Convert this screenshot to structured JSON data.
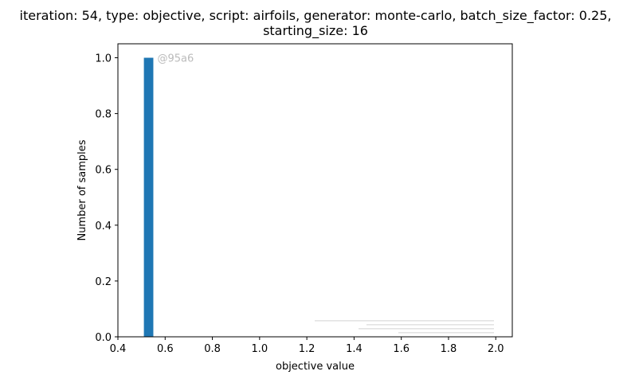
{
  "chart_data": {
    "type": "bar",
    "title_lines": [
      "iteration: 54, type: objective, script: airfoils, generator: monte-carlo, batch_size_factor: 0.25,",
      "starting_size: 16"
    ],
    "xlabel": "objective value",
    "ylabel": "Number of samples",
    "xlim": [
      0.4,
      2.07
    ],
    "ylim": [
      0,
      1.05
    ],
    "x_ticks": [
      0.4,
      0.6,
      0.8,
      1.0,
      1.2,
      1.4,
      1.6,
      1.8,
      2.0
    ],
    "x_tick_labels": [
      "0.4",
      "0.6",
      "0.8",
      "1.0",
      "1.2",
      "1.4",
      "1.6",
      "1.8",
      "2.0"
    ],
    "y_ticks": [
      0.0,
      0.2,
      0.4,
      0.6,
      0.8,
      1.0
    ],
    "y_tick_labels": [
      "0.0",
      "0.2",
      "0.4",
      "0.6",
      "0.8",
      "1.0"
    ],
    "bars": [
      {
        "x0": 0.51,
        "x1": 0.55,
        "value": 1
      }
    ],
    "bar_color": "#1f77b4",
    "annotation": "@95a6",
    "grid": false
  }
}
